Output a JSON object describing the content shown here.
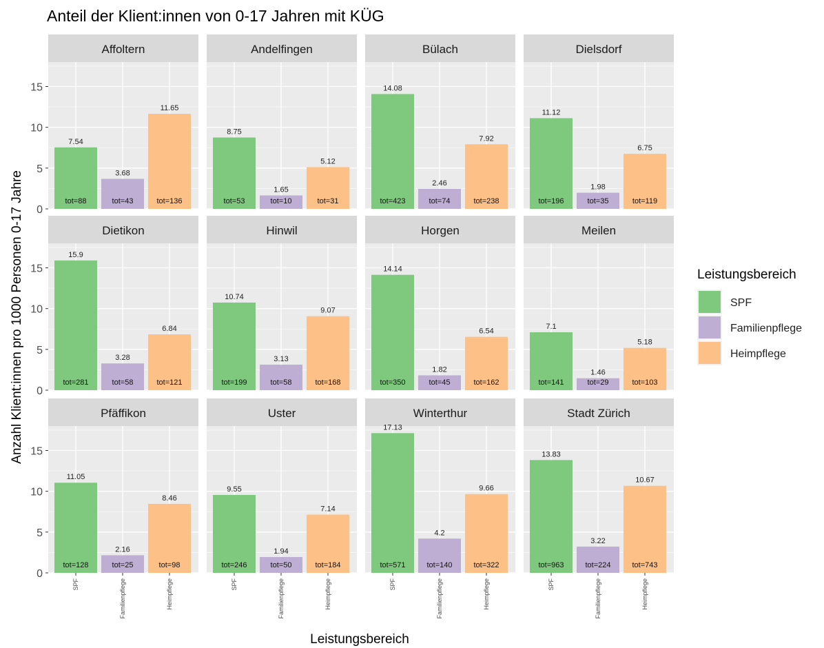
{
  "chart_data": {
    "type": "bar",
    "title": "Anteil der Klient:innen von 0-17 Jahren mit KÜG",
    "xlabel": "Leistungsbereich",
    "ylabel": "Anzahl Klient:innen pro 1000 Personen 0-17 Jahre",
    "categories": [
      "SPF",
      "Familienpflege",
      "Heimpflege"
    ],
    "ylim": [
      0,
      18
    ],
    "yticks": [
      0,
      5,
      10,
      15
    ],
    "grid": true,
    "legend": {
      "title": "Leistungsbereich",
      "position": "right",
      "entries": [
        "SPF",
        "Familienpflege",
        "Heimpflege"
      ]
    },
    "colors": {
      "SPF": "#7fc97f",
      "Familienpflege": "#beaed4",
      "Heimpflege": "#fdc086",
      "panel_bg": "#ebebeb",
      "strip_bg": "#d9d9d9",
      "grid_major": "#ffffff"
    },
    "panels": [
      {
        "name": "Affoltern",
        "values": [
          7.54,
          3.68,
          11.65
        ],
        "totals": [
          "tot=88",
          "tot=43",
          "tot=136"
        ]
      },
      {
        "name": "Andelfingen",
        "values": [
          8.75,
          1.65,
          5.12
        ],
        "totals": [
          "tot=53",
          "tot=10",
          "tot=31"
        ]
      },
      {
        "name": "Bülach",
        "values": [
          14.08,
          2.46,
          7.92
        ],
        "totals": [
          "tot=423",
          "tot=74",
          "tot=238"
        ]
      },
      {
        "name": "Dielsdorf",
        "values": [
          11.12,
          1.98,
          6.75
        ],
        "totals": [
          "tot=196",
          "tot=35",
          "tot=119"
        ]
      },
      {
        "name": "Dietikon",
        "values": [
          15.9,
          3.28,
          6.84
        ],
        "totals": [
          "tot=281",
          "tot=58",
          "tot=121"
        ]
      },
      {
        "name": "Hinwil",
        "values": [
          10.74,
          3.13,
          9.07
        ],
        "totals": [
          "tot=199",
          "tot=58",
          "tot=168"
        ]
      },
      {
        "name": "Horgen",
        "values": [
          14.14,
          1.82,
          6.54
        ],
        "totals": [
          "tot=350",
          "tot=45",
          "tot=162"
        ]
      },
      {
        "name": "Meilen",
        "values": [
          7.1,
          1.46,
          5.18
        ],
        "totals": [
          "tot=141",
          "tot=29",
          "tot=103"
        ]
      },
      {
        "name": "Pfäffikon",
        "values": [
          11.05,
          2.16,
          8.46
        ],
        "totals": [
          "tot=128",
          "tot=25",
          "tot=98"
        ]
      },
      {
        "name": "Uster",
        "values": [
          9.55,
          1.94,
          7.14
        ],
        "totals": [
          "tot=246",
          "tot=50",
          "tot=184"
        ]
      },
      {
        "name": "Winterthur",
        "values": [
          17.13,
          4.2,
          9.66
        ],
        "totals": [
          "tot=571",
          "tot=140",
          "tot=322"
        ]
      },
      {
        "name": "Stadt Zürich",
        "values": [
          13.83,
          3.22,
          10.67
        ],
        "totals": [
          "tot=963",
          "tot=224",
          "tot=743"
        ]
      }
    ]
  }
}
